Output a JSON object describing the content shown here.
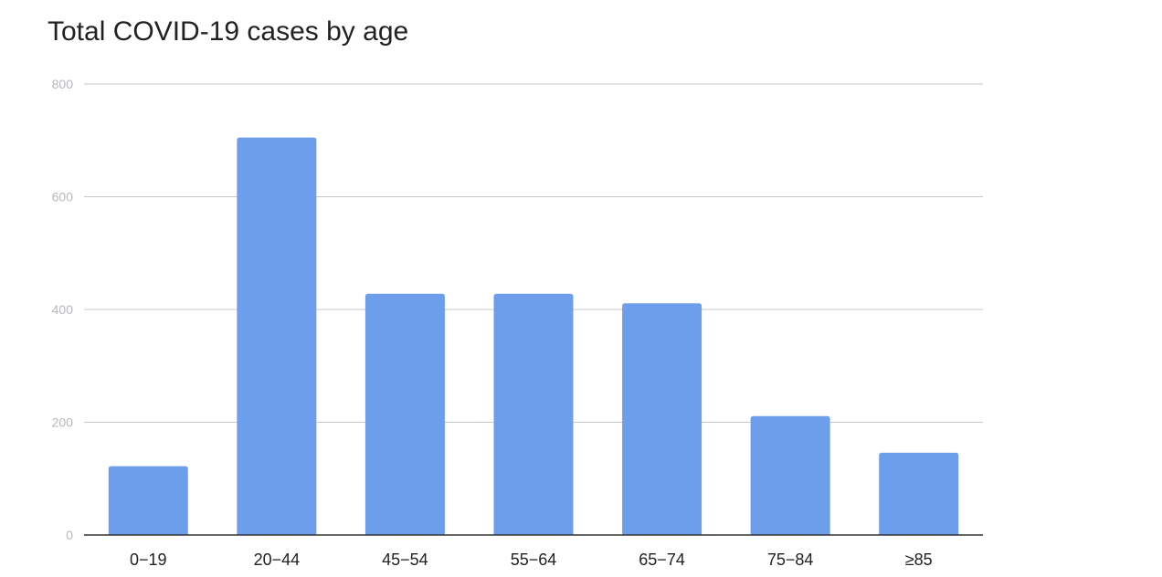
{
  "chart_data": {
    "type": "bar",
    "title": "Total COVID-19 cases by age",
    "categories": [
      "0−19",
      "20−44",
      "45−54",
      "55−64",
      "65−74",
      "75−84",
      "≥85"
    ],
    "values": [
      122,
      705,
      428,
      428,
      411,
      211,
      146
    ],
    "ylim": [
      0,
      800
    ],
    "yticks": [
      0,
      200,
      400,
      600,
      800
    ],
    "xlabel": "",
    "ylabel": "",
    "grid": true,
    "bar_color": "#6d9eeb",
    "gridline_color": "#c4c8cc",
    "axis_color": "#333333"
  }
}
